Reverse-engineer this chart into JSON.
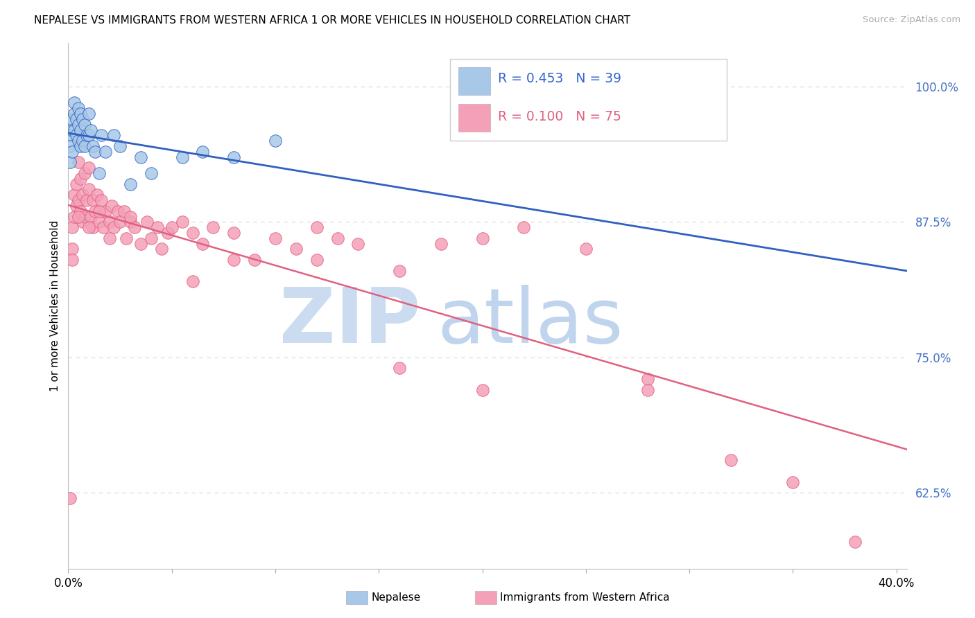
{
  "title": "NEPALESE VS IMMIGRANTS FROM WESTERN AFRICA 1 OR MORE VEHICLES IN HOUSEHOLD CORRELATION CHART",
  "source": "Source: ZipAtlas.com",
  "ylabel": "1 or more Vehicles in Household",
  "ytick_labels": [
    "100.0%",
    "87.5%",
    "75.0%",
    "62.5%"
  ],
  "ytick_values": [
    1.0,
    0.875,
    0.75,
    0.625
  ],
  "legend_r1": "R = 0.453",
  "legend_n1": "N = 39",
  "legend_r2": "R = 0.100",
  "legend_n2": "N = 75",
  "nepalese_color": "#a8c8e8",
  "western_africa_color": "#f4a0b8",
  "trend_blue": "#3060c0",
  "trend_pink": "#e06080",
  "watermark_zip_color": "#ccdcf0",
  "watermark_atlas_color": "#c0d4ee",
  "blue_scatter_x": [
    0.001,
    0.001,
    0.001,
    0.002,
    0.002,
    0.002,
    0.003,
    0.003,
    0.003,
    0.004,
    0.004,
    0.005,
    0.005,
    0.005,
    0.006,
    0.006,
    0.006,
    0.007,
    0.007,
    0.008,
    0.008,
    0.009,
    0.01,
    0.01,
    0.011,
    0.012,
    0.013,
    0.015,
    0.016,
    0.018,
    0.022,
    0.025,
    0.03,
    0.035,
    0.04,
    0.055,
    0.065,
    0.08,
    0.1
  ],
  "blue_scatter_y": [
    0.955,
    0.945,
    0.93,
    0.97,
    0.96,
    0.94,
    0.985,
    0.975,
    0.96,
    0.97,
    0.955,
    0.98,
    0.965,
    0.95,
    0.975,
    0.96,
    0.945,
    0.97,
    0.95,
    0.965,
    0.945,
    0.955,
    0.975,
    0.955,
    0.96,
    0.945,
    0.94,
    0.92,
    0.955,
    0.94,
    0.955,
    0.945,
    0.91,
    0.935,
    0.92,
    0.935,
    0.94,
    0.935,
    0.95
  ],
  "pink_scatter_x": [
    0.001,
    0.002,
    0.002,
    0.003,
    0.003,
    0.004,
    0.004,
    0.005,
    0.005,
    0.006,
    0.006,
    0.007,
    0.007,
    0.008,
    0.008,
    0.009,
    0.01,
    0.01,
    0.011,
    0.012,
    0.012,
    0.013,
    0.014,
    0.015,
    0.016,
    0.017,
    0.018,
    0.02,
    0.021,
    0.022,
    0.024,
    0.025,
    0.027,
    0.028,
    0.03,
    0.032,
    0.035,
    0.038,
    0.04,
    0.043,
    0.048,
    0.05,
    0.055,
    0.06,
    0.065,
    0.07,
    0.08,
    0.09,
    0.1,
    0.11,
    0.12,
    0.13,
    0.14,
    0.16,
    0.18,
    0.2,
    0.22,
    0.25,
    0.28,
    0.32,
    0.002,
    0.005,
    0.01,
    0.015,
    0.02,
    0.03,
    0.045,
    0.06,
    0.08,
    0.12,
    0.16,
    0.2,
    0.28,
    0.35,
    0.38
  ],
  "pink_scatter_y": [
    0.62,
    0.87,
    0.85,
    0.9,
    0.88,
    0.91,
    0.89,
    0.93,
    0.895,
    0.915,
    0.885,
    0.9,
    0.875,
    0.92,
    0.88,
    0.895,
    0.925,
    0.905,
    0.88,
    0.895,
    0.87,
    0.885,
    0.9,
    0.875,
    0.895,
    0.87,
    0.885,
    0.875,
    0.89,
    0.87,
    0.885,
    0.875,
    0.885,
    0.86,
    0.875,
    0.87,
    0.855,
    0.875,
    0.86,
    0.87,
    0.865,
    0.87,
    0.875,
    0.865,
    0.855,
    0.87,
    0.865,
    0.84,
    0.86,
    0.85,
    0.84,
    0.86,
    0.855,
    0.83,
    0.855,
    0.86,
    0.87,
    0.85,
    0.73,
    0.655,
    0.84,
    0.88,
    0.87,
    0.885,
    0.86,
    0.88,
    0.85,
    0.82,
    0.84,
    0.87,
    0.74,
    0.72,
    0.72,
    0.635,
    0.58
  ],
  "xlim": [
    0.0,
    0.405
  ],
  "ylim": [
    0.555,
    1.04
  ],
  "xtick_positions": [
    0.0,
    0.05,
    0.1,
    0.15,
    0.2,
    0.25,
    0.3,
    0.35,
    0.4
  ],
  "background_color": "#ffffff",
  "grid_color": "#d8d8d8"
}
